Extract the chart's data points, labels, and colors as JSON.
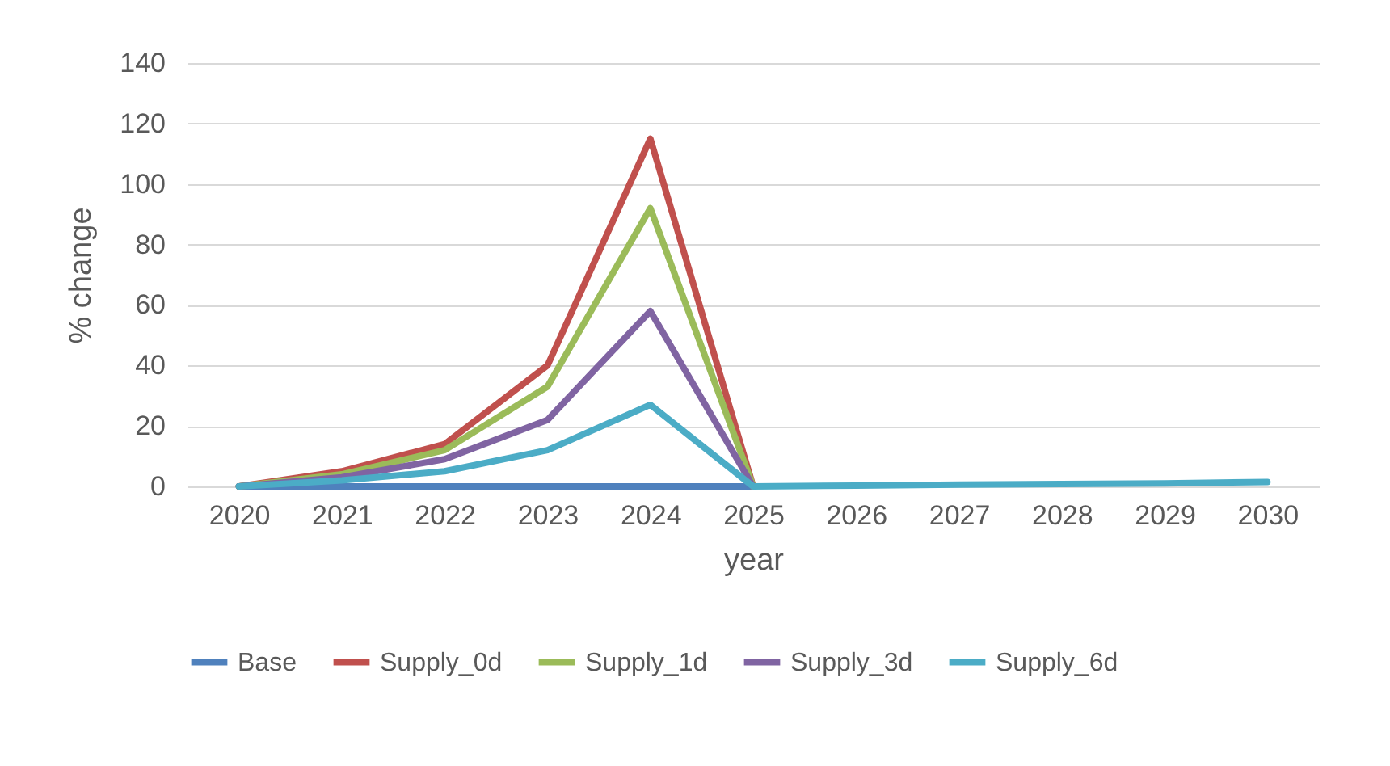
{
  "chart_data": {
    "type": "line",
    "xlabel": "year",
    "ylabel": "% change",
    "categories": [
      "2020",
      "2021",
      "2022",
      "2023",
      "2024",
      "2025",
      "2026",
      "2027",
      "2028",
      "2029",
      "2030"
    ],
    "series": [
      {
        "name": "Base",
        "color": "#4f81bd",
        "values": [
          0,
          0,
          0,
          0,
          0,
          0,
          null,
          null,
          null,
          null,
          null
        ]
      },
      {
        "name": "Supply_0d",
        "color": "#c0504d",
        "values": [
          0,
          5,
          14,
          40,
          115,
          0,
          null,
          null,
          null,
          null,
          null
        ]
      },
      {
        "name": "Supply_1d",
        "color": "#9bbb59",
        "values": [
          0,
          4,
          12,
          33,
          92,
          0,
          null,
          null,
          null,
          null,
          null
        ]
      },
      {
        "name": "Supply_3d",
        "color": "#8064a2",
        "values": [
          0,
          3,
          9,
          22,
          58,
          0,
          null,
          null,
          null,
          null,
          null
        ]
      },
      {
        "name": "Supply_6d",
        "color": "#4bacc6",
        "values": [
          0,
          2,
          5,
          12,
          27,
          0,
          0.3,
          0.6,
          0.8,
          1,
          1.5
        ]
      }
    ],
    "ylim": [
      0,
      140
    ],
    "yticks": [
      0,
      20,
      40,
      60,
      80,
      100,
      120,
      140
    ],
    "grid": "y",
    "legend": "bottom",
    "marker": "none"
  }
}
